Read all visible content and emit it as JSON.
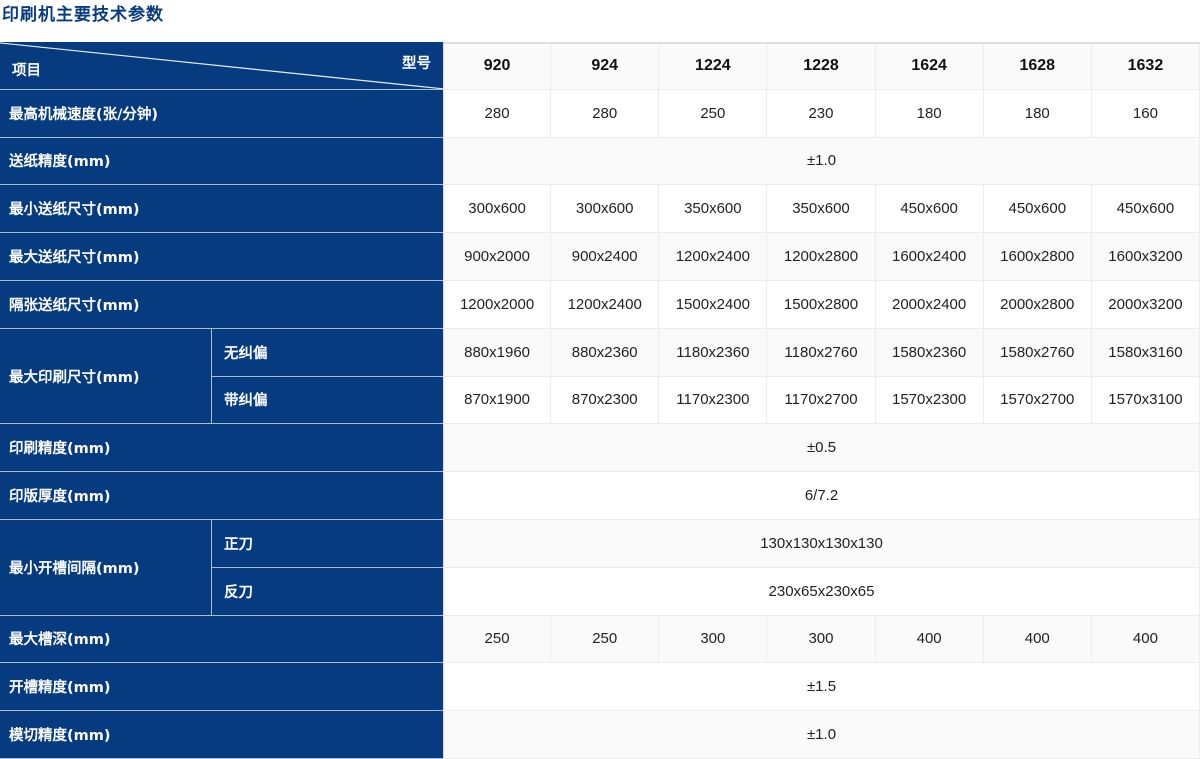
{
  "title": "印刷机主要技术参数",
  "header": {
    "model_label": "型号",
    "item_label": "项目",
    "models": [
      "920",
      "924",
      "1224",
      "1228",
      "1624",
      "1628",
      "1632"
    ]
  },
  "rows": [
    {
      "label": "最高机械速度(张/分钟)",
      "values": [
        "280",
        "280",
        "250",
        "230",
        "180",
        "180",
        "160"
      ]
    },
    {
      "label": "送纸精度(mm)",
      "span": "±1.0"
    },
    {
      "label": "最小送纸尺寸(mm)",
      "values": [
        "300x600",
        "300x600",
        "350x600",
        "350x600",
        "450x600",
        "450x600",
        "450x600"
      ]
    },
    {
      "label": "最大送纸尺寸(mm)",
      "values": [
        "900x2000",
        "900x2400",
        "1200x2400",
        "1200x2800",
        "1600x2400",
        "1600x2800",
        "1600x3200"
      ]
    },
    {
      "label": "隔张送纸尺寸(mm)",
      "values": [
        "1200x2000",
        "1200x2400",
        "1500x2400",
        "1500x2800",
        "2000x2400",
        "2000x2800",
        "2000x3200"
      ]
    },
    {
      "label": "最大印刷尺寸(mm)",
      "subrows": [
        {
          "label": "无纠偏",
          "values": [
            "880x1960",
            "880x2360",
            "1180x2360",
            "1180x2760",
            "1580x2360",
            "1580x2760",
            "1580x3160"
          ]
        },
        {
          "label": "带纠偏",
          "values": [
            "870x1900",
            "870x2300",
            "1170x2300",
            "1170x2700",
            "1570x2300",
            "1570x2700",
            "1570x3100"
          ]
        }
      ]
    },
    {
      "label": "印刷精度(mm)",
      "span": "±0.5"
    },
    {
      "label": "印版厚度(mm)",
      "span": "6/7.2"
    },
    {
      "label": "最小开槽间隔(mm)",
      "subrows": [
        {
          "label": "正刀",
          "span": "130x130x130x130"
        },
        {
          "label": "反刀",
          "span": "230x65x230x65"
        }
      ]
    },
    {
      "label": "最大槽深(mm)",
      "values": [
        "250",
        "250",
        "300",
        "300",
        "400",
        "400",
        "400"
      ]
    },
    {
      "label": "开槽精度(mm)",
      "span": "±1.5"
    },
    {
      "label": "模切精度(mm)",
      "span": "±1.0"
    }
  ],
  "colors": {
    "header_blue": "#063b80",
    "title_blue": "#0a3d80"
  }
}
